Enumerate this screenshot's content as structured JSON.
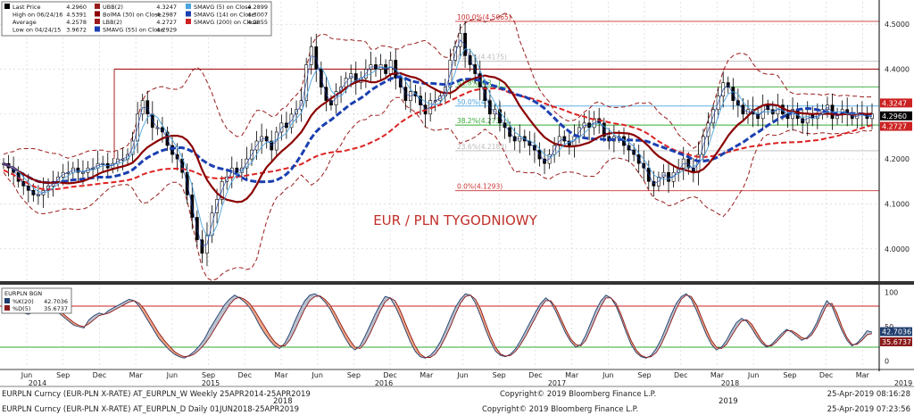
{
  "chart_data": [
    {
      "type": "candlestick",
      "title": "EUR / PLN TYGODNIOWY",
      "ylim": [
        3.93,
        4.55
      ],
      "y_ticks": [
        "4.5000",
        "4.4000",
        "4.3000",
        "4.2000",
        "4.1000",
        "4.0000"
      ],
      "legend": {
        "col1": [
          {
            "label": "Last Price",
            "value": "4.2960",
            "swatch": "#000000"
          },
          {
            "label": "High on 06/24/16",
            "value": "4.5391",
            "swatch": "none"
          },
          {
            "label": "Average",
            "value": "4.2578",
            "swatch": "none"
          },
          {
            "label": "Low on 04/24/15",
            "value": "3.9672",
            "swatch": "none"
          }
        ],
        "col2": [
          {
            "label": "UBB(2)",
            "value": "4.3247",
            "swatch": "#9b1c1c"
          },
          {
            "label": "BolMA (30)  on Close",
            "value": "4.2987",
            "swatch": "#8b0000"
          },
          {
            "label": "LBB(2)",
            "value": "4.2727",
            "swatch": "#9b1c1c"
          },
          {
            "label": "SMAVG (55)  on Close",
            "value": "4.2929",
            "swatch": "#1a3fb0"
          }
        ],
        "col3": [
          {
            "label": "SMAVG (5)  on Close",
            "value": "4.2899",
            "swatch": "#4aa3df"
          },
          {
            "label": "SMAVG (14)  on Close",
            "value": "4.3007",
            "swatch": "#1a3fb0"
          },
          {
            "label": "SMAVG (200)  on Close",
            "value": "4.2855",
            "swatch": "#cc2222"
          }
        ]
      },
      "fib_levels": [
        {
          "label": "100.0%(4.5065)",
          "value": 4.5065,
          "color": "#cc3333"
        },
        {
          "label": "61.8%(4.4175)",
          "value": 4.4175,
          "color": "#bbbbbb"
        },
        {
          "label": "61.8%(4.3...)",
          "value": 4.3605,
          "color": "#33aa33"
        },
        {
          "label": "50.0%(4.3...)",
          "value": 4.3179,
          "color": "#4aa3df"
        },
        {
          "label": "38.2%(4.273...)",
          "value": 4.2755,
          "color": "#33aa33"
        },
        {
          "label": "23.6%(4.2183)",
          "value": 4.2183,
          "color": "#bbbbbb"
        },
        {
          "label": "0.0%(4.1293)",
          "value": 4.1293,
          "color": "#cc3333"
        }
      ],
      "resistance_line": 4.4,
      "right_labels": [
        {
          "text": "4.3247",
          "value": 4.3247,
          "bg": "#cc2222"
        },
        {
          "text": "4.2960",
          "value": 4.296,
          "bg": "#000000"
        },
        {
          "text": "4.2727",
          "value": 4.2727,
          "bg": "#cc2222"
        }
      ],
      "series": {
        "close": [
          4.19,
          4.18,
          4.17,
          4.15,
          4.14,
          4.13,
          4.12,
          4.12,
          4.13,
          4.14,
          4.15,
          4.16,
          4.17,
          4.17,
          4.18,
          4.17,
          4.17,
          4.18,
          4.18,
          4.19,
          4.19,
          4.18,
          4.19,
          4.2,
          4.2,
          4.21,
          4.24,
          4.3,
          4.33,
          4.3,
          4.27,
          4.27,
          4.26,
          4.23,
          4.21,
          4.2,
          4.17,
          4.12,
          4.07,
          4.02,
          3.99,
          4.03,
          4.08,
          4.11,
          4.15,
          4.16,
          4.18,
          4.17,
          4.18,
          4.2,
          4.22,
          4.24,
          4.25,
          4.24,
          4.22,
          4.26,
          4.28,
          4.27,
          4.3,
          4.31,
          4.33,
          4.41,
          4.45,
          4.4,
          4.36,
          4.33,
          4.32,
          4.35,
          4.36,
          4.38,
          4.39,
          4.37,
          4.38,
          4.4,
          4.41,
          4.4,
          4.41,
          4.39,
          4.42,
          4.38,
          4.36,
          4.33,
          4.35,
          4.34,
          4.32,
          4.3,
          4.33,
          4.33,
          4.34,
          4.36,
          4.42,
          4.45,
          4.48,
          4.43,
          4.41,
          4.39,
          4.36,
          4.33,
          4.3,
          4.31,
          4.28,
          4.27,
          4.25,
          4.24,
          4.25,
          4.24,
          4.23,
          4.22,
          4.2,
          4.19,
          4.21,
          4.23,
          4.25,
          4.24,
          4.23,
          4.25,
          4.27,
          4.28,
          4.27,
          4.29,
          4.28,
          4.25,
          4.24,
          4.25,
          4.25,
          4.23,
          4.22,
          4.21,
          4.19,
          4.18,
          4.15,
          4.14,
          4.16,
          4.17,
          4.15,
          4.17,
          4.18,
          4.2,
          4.18,
          4.17,
          4.21,
          4.25,
          4.28,
          4.31,
          4.34,
          4.37,
          4.36,
          4.33,
          4.32,
          4.3,
          4.31,
          4.3,
          4.29,
          4.32,
          4.31,
          4.3,
          4.32,
          4.3,
          4.29,
          4.31,
          4.29,
          4.28,
          4.3,
          4.29,
          4.3,
          4.31,
          4.32,
          4.29,
          4.3,
          4.31,
          4.3,
          4.29,
          4.3,
          4.3,
          4.29,
          4.3
        ],
        "osc_k": [
          72,
          74,
          73,
          75,
          70,
          68,
          72,
          76,
          78,
          80,
          76,
          70,
          64,
          58,
          52,
          50,
          48,
          60,
          66,
          70,
          68,
          74,
          78,
          82,
          86,
          90,
          88,
          80,
          68,
          56,
          44,
          32,
          24,
          16,
          10,
          6,
          4,
          8,
          14,
          22,
          32,
          46,
          58,
          70,
          82,
          90,
          96,
          92,
          86,
          78,
          66,
          52,
          40,
          30,
          22,
          18,
          26,
          40,
          58,
          74,
          88,
          96,
          98,
          94,
          86,
          76,
          62,
          48,
          34,
          22,
          16,
          22,
          36,
          52,
          68,
          82,
          94,
          92,
          80,
          64,
          46,
          28,
          14,
          6,
          4,
          8,
          16,
          28,
          44,
          62,
          78,
          90,
          98,
          96,
          84,
          66,
          46,
          28,
          14,
          8,
          6,
          10,
          18,
          30,
          44,
          58,
          72,
          84,
          92,
          86,
          72,
          56,
          40,
          28,
          20,
          24,
          38,
          56,
          74,
          88,
          96,
          92,
          80,
          62,
          42,
          24,
          12,
          6,
          4,
          8,
          18,
          32,
          50,
          68,
          84,
          94,
          98,
          90,
          74,
          56,
          38,
          24,
          16,
          20,
          30,
          44,
          56,
          62,
          58,
          48,
          36,
          26,
          20,
          24,
          32,
          40,
          46,
          42,
          36,
          30,
          34,
          42,
          56,
          74,
          88,
          80,
          62,
          44,
          30,
          22,
          26,
          34,
          44,
          42
        ],
        "osc_d": [
          70,
          72,
          73,
          74,
          72,
          70,
          71,
          73,
          76,
          78,
          78,
          74,
          68,
          62,
          56,
          52,
          50,
          54,
          60,
          66,
          68,
          70,
          74,
          78,
          82,
          86,
          88,
          84,
          76,
          64,
          52,
          40,
          30,
          22,
          14,
          9,
          6,
          7,
          10,
          16,
          24,
          34,
          46,
          58,
          70,
          82,
          90,
          93,
          90,
          84,
          74,
          62,
          50,
          38,
          28,
          22,
          22,
          30,
          44,
          60,
          76,
          88,
          94,
          95,
          90,
          82,
          70,
          56,
          42,
          30,
          20,
          18,
          26,
          40,
          56,
          72,
          86,
          92,
          88,
          74,
          56,
          38,
          22,
          10,
          5,
          5,
          10,
          20,
          34,
          50,
          68,
          84,
          94,
          96,
          90,
          76,
          56,
          36,
          20,
          10,
          7,
          8,
          14,
          24,
          36,
          50,
          64,
          78,
          88,
          88,
          78,
          62,
          46,
          32,
          24,
          22,
          30,
          46,
          64,
          80,
          92,
          92,
          84,
          68,
          48,
          30,
          16,
          8,
          5,
          6,
          12,
          24,
          40,
          58,
          76,
          90,
          96,
          94,
          82,
          64,
          46,
          30,
          20,
          18,
          24,
          36,
          48,
          58,
          60,
          54,
          42,
          30,
          22,
          22,
          28,
          36,
          44,
          44,
          40,
          34,
          32,
          38,
          50,
          66,
          82,
          84,
          70,
          50,
          34,
          24,
          24,
          30,
          38,
          40
        ]
      }
    },
    {
      "type": "oscillator",
      "title": "EURPLN BGN",
      "legend": [
        {
          "label": "%K(20)",
          "value": "42.7036",
          "swatch": "#1f3e6e"
        },
        {
          "label": "%D(5)",
          "value": "35.6737",
          "swatch": "#8b1a1a"
        }
      ],
      "ylim": [
        -10,
        110
      ],
      "y_ticks": [
        "100",
        "50",
        "0"
      ],
      "levels": [
        80,
        20
      ],
      "right_labels": [
        {
          "text": "42.7036",
          "value": 42.7036,
          "bg": "#1f3e6e"
        },
        {
          "text": "35.6737",
          "value": 35.6737,
          "bg": "#8b1a1a"
        }
      ]
    }
  ],
  "x_axis": {
    "months": [
      "Jun",
      "Sep",
      "Dec",
      "Mar",
      "Jun",
      "Sep",
      "Dec",
      "Mar",
      "Jun",
      "Sep",
      "Dec",
      "Mar",
      "Jun",
      "Sep",
      "Dec",
      "Mar",
      "Jun",
      "Sep",
      "Dec",
      "Mar",
      "Jun",
      "Sep",
      "Dec",
      "Mar"
    ],
    "years": [
      "2014",
      "2015",
      "2016",
      "2017",
      "2018",
      "2019"
    ]
  },
  "footer": {
    "line1_left": "EURPLN Curncy (EUR-PLN X-RATE) AT_EURPLN_W  Weekly 25APR2014-25APR2019",
    "line1_center": "Copyright© 2019 Bloomberg Finance L.P.",
    "line1_right": "25-Apr-2019 08:16:28",
    "mid_year_a": "2018",
    "mid_year_b": "2019",
    "line2_left": "EURPLN Curncy (EUR-PLN X-RATE) AT_EURPLN_D  Daily 01JUN2018-25APR2019",
    "line2_center": "Copyright© 2019 Bloomberg Finance L.P.",
    "line2_right": "25-Apr-2019 07:23:56"
  }
}
